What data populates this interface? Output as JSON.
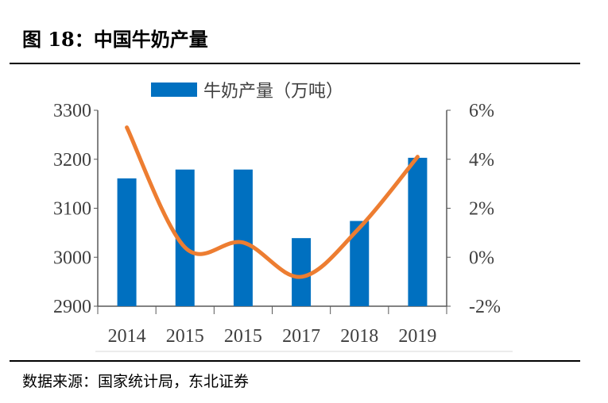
{
  "title": "图 18：中国牛奶产量",
  "source": "数据来源：国家统计局，东北证券",
  "chart_data": {
    "type": "bar+line",
    "categories": [
      "2014",
      "2015",
      "2015",
      "2017",
      "2018",
      "2019"
    ],
    "series": [
      {
        "name": "牛奶产量（万吨）",
        "type": "bar",
        "axis": "left",
        "color": "#0070C0",
        "values": [
          3161,
          3179,
          3179,
          3039,
          3074,
          3203
        ]
      },
      {
        "type": "line",
        "axis": "right",
        "color": "#ED7D31",
        "smooth": true,
        "values": [
          5.3,
          0.4,
          0.6,
          -0.8,
          1.2,
          4.1
        ]
      }
    ],
    "y_left": {
      "range": [
        2900,
        3300
      ],
      "ticks": [
        "2900",
        "3000",
        "3100",
        "3200",
        "3300"
      ]
    },
    "y_right": {
      "range": [
        -2,
        6
      ],
      "ticks": [
        "-2%",
        "0%",
        "2%",
        "4%",
        "6%"
      ]
    },
    "legend": "top",
    "grid": false
  }
}
